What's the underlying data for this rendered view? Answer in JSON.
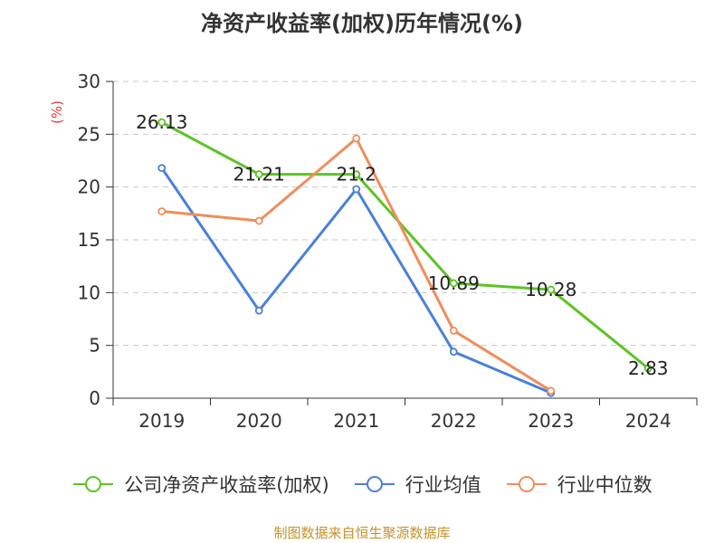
{
  "chart_data": {
    "type": "line",
    "title": "净资产收益率(加权)历年情况(%)",
    "ylabel": "(%)",
    "categories": [
      "2019",
      "2020",
      "2021",
      "2022",
      "2023",
      "2024"
    ],
    "ylim": [
      0,
      30
    ],
    "yticks": [
      "0",
      "5",
      "10",
      "15",
      "20",
      "25",
      "30"
    ],
    "grid": true,
    "legend_position": "bottom",
    "series": [
      {
        "name": "公司净资产收益率(加权)",
        "color": "#5cc423",
        "values": [
          26.13,
          21.21,
          21.2,
          10.89,
          10.28,
          2.83
        ],
        "labels": [
          "26.13",
          "21.21",
          "21.2",
          "10.89",
          "10.28",
          "2.83"
        ]
      },
      {
        "name": "行业均值",
        "color": "#4a80d8",
        "values": [
          21.8,
          8.3,
          19.8,
          4.4,
          0.5,
          null
        ]
      },
      {
        "name": "行业中位数",
        "color": "#f28c5b",
        "values": [
          17.7,
          16.8,
          24.6,
          6.4,
          0.7,
          null
        ]
      }
    ]
  },
  "source": "制图数据来自恒生聚源数据库"
}
